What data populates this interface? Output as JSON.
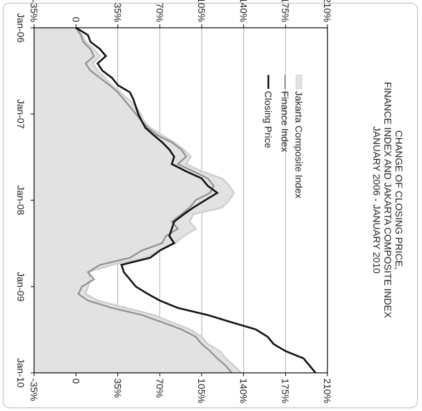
{
  "chart_data": {
    "type": "area",
    "orientation": "rotated-90-clockwise",
    "title_lines": [
      "CHANGE OF CLOSING PRICE,",
      "FINANCE INDEX AND JAKARTA COMPOSITE INDEX",
      "JANUARY 2006 - JANUARY 2010"
    ],
    "x_ticks": [
      "Jan-06",
      "Jan-07",
      "Jan-08",
      "Jan-09",
      "Jan-10"
    ],
    "y_ticks": [
      "-35%",
      "0",
      "35%",
      "70%",
      "105%",
      "140%",
      "175%",
      "210%"
    ],
    "ylim": [
      -35,
      210
    ],
    "grid": "horizontal",
    "legend_position": "top-left",
    "legend": {
      "jci": "Jakarta Composite Index",
      "finance": "Finance Index",
      "closing": "Closing Price"
    },
    "colors": {
      "jci_fill": "#e2e2e2",
      "jci_line": "#cfcfcf",
      "finance": "#8f8f8f",
      "closing": "#111111",
      "grid": "#9a9a9a",
      "axis": "#000000"
    },
    "series": [
      {
        "name": "Jakarta Composite Index",
        "style": "area",
        "x": [
          "2006-01",
          "2006-02",
          "2006-03",
          "2006-04",
          "2006-05",
          "2006-06",
          "2006-07",
          "2006-08",
          "2006-09",
          "2006-10",
          "2006-11",
          "2006-12",
          "2007-01",
          "2007-02",
          "2007-03",
          "2007-04",
          "2007-05",
          "2007-06",
          "2007-07",
          "2007-08",
          "2007-09",
          "2007-10",
          "2007-11",
          "2007-12",
          "2008-01",
          "2008-02",
          "2008-03",
          "2008-04",
          "2008-05",
          "2008-06",
          "2008-07",
          "2008-08",
          "2008-09",
          "2008-10",
          "2008-11",
          "2008-12",
          "2009-01",
          "2009-02",
          "2009-03",
          "2009-04",
          "2009-05",
          "2009-06",
          "2009-07",
          "2009-08",
          "2009-09",
          "2009-10",
          "2009-11",
          "2009-12",
          "2010-01"
        ],
        "values": [
          0,
          5,
          8,
          15,
          20,
          14,
          18,
          24,
          30,
          37,
          44,
          50,
          54,
          57,
          62,
          72,
          82,
          90,
          96,
          92,
          105,
          122,
          128,
          132,
          128,
          122,
          98,
          95,
          100,
          90,
          83,
          70,
          58,
          30,
          10,
          12,
          10,
          8,
          18,
          42,
          65,
          80,
          95,
          105,
          110,
          120,
          125,
          132,
          138
        ]
      },
      {
        "name": "Finance Index",
        "style": "line",
        "x": [
          "2006-01",
          "2006-02",
          "2006-03",
          "2006-04",
          "2006-05",
          "2006-06",
          "2006-07",
          "2006-08",
          "2006-09",
          "2006-10",
          "2006-11",
          "2006-12",
          "2007-01",
          "2007-02",
          "2007-03",
          "2007-04",
          "2007-05",
          "2007-06",
          "2007-07",
          "2007-08",
          "2007-09",
          "2007-10",
          "2007-11",
          "2007-12",
          "2008-01",
          "2008-02",
          "2008-03",
          "2008-04",
          "2008-05",
          "2008-06",
          "2008-07",
          "2008-08",
          "2008-09",
          "2008-10",
          "2008-11",
          "2008-12",
          "2009-01",
          "2009-02",
          "2009-03",
          "2009-04",
          "2009-05",
          "2009-06",
          "2009-07",
          "2009-08",
          "2009-09",
          "2009-10",
          "2009-11",
          "2009-12",
          "2010-01"
        ],
        "values": [
          0,
          4,
          6,
          12,
          15,
          8,
          12,
          20,
          28,
          35,
          40,
          45,
          50,
          55,
          60,
          68,
          80,
          88,
          92,
          85,
          98,
          110,
          115,
          112,
          100,
          95,
          88,
          80,
          85,
          75,
          72,
          55,
          45,
          20,
          10,
          15,
          5,
          2,
          10,
          30,
          55,
          72,
          88,
          100,
          105,
          112,
          118,
          125,
          130
        ]
      },
      {
        "name": "Closing Price",
        "style": "line",
        "x": [
          "2006-01",
          "2006-02",
          "2006-03",
          "2006-04",
          "2006-05",
          "2006-06",
          "2006-07",
          "2006-08",
          "2006-09",
          "2006-10",
          "2006-11",
          "2006-12",
          "2007-01",
          "2007-02",
          "2007-03",
          "2007-04",
          "2007-05",
          "2007-06",
          "2007-07",
          "2007-08",
          "2007-09",
          "2007-10",
          "2007-11",
          "2007-12",
          "2008-01",
          "2008-02",
          "2008-03",
          "2008-04",
          "2008-05",
          "2008-06",
          "2008-07",
          "2008-08",
          "2008-09",
          "2008-10",
          "2008-11",
          "2008-12",
          "2009-01",
          "2009-02",
          "2009-03",
          "2009-04",
          "2009-05",
          "2009-06",
          "2009-07",
          "2009-08",
          "2009-09",
          "2009-10",
          "2009-11",
          "2009-12",
          "2010-01"
        ],
        "values": [
          0,
          10,
          12,
          20,
          25,
          18,
          22,
          30,
          35,
          45,
          48,
          50,
          52,
          55,
          58,
          65,
          72,
          78,
          82,
          80,
          92,
          105,
          110,
          118,
          108,
          98,
          90,
          82,
          80,
          78,
          82,
          70,
          62,
          38,
          40,
          45,
          50,
          60,
          70,
          85,
          110,
          130,
          150,
          160,
          165,
          175,
          190,
          195,
          200
        ]
      }
    ]
  }
}
